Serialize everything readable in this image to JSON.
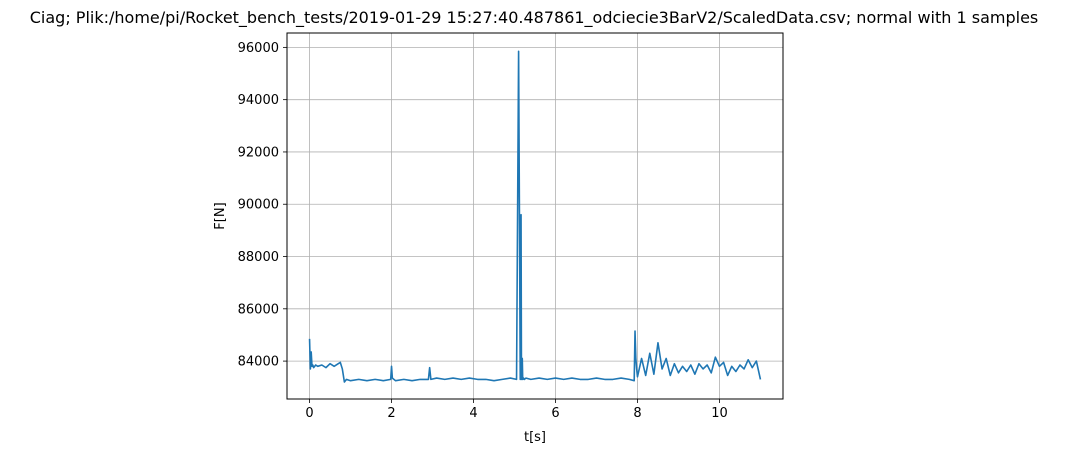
{
  "chart_data": {
    "type": "line",
    "title": "Ciag; Plik:/home/pi/Rocket_bench_tests/2019-01-29 15:27:40.487861_odciecie3BarV2/ScaledData.csv; normal with 1 samples",
    "xlabel": "t[s]",
    "ylabel": "F[N]",
    "xlim": [
      -0.55,
      11.55
    ],
    "ylim": [
      82550,
      96550
    ],
    "xticks": [
      0,
      2,
      4,
      6,
      8,
      10
    ],
    "yticks": [
      84000,
      86000,
      88000,
      90000,
      92000,
      94000,
      96000
    ],
    "grid": true,
    "series": [
      {
        "color": "#1f77b4",
        "x": [
          0.0,
          0.02,
          0.04,
          0.06,
          0.08,
          0.1,
          0.15,
          0.2,
          0.3,
          0.4,
          0.5,
          0.6,
          0.7,
          0.75,
          0.8,
          0.85,
          0.9,
          1.0,
          1.2,
          1.4,
          1.6,
          1.8,
          1.98,
          2.0,
          2.02,
          2.1,
          2.3,
          2.5,
          2.7,
          2.9,
          2.93,
          2.96,
          3.1,
          3.3,
          3.5,
          3.7,
          3.9,
          4.1,
          4.3,
          4.5,
          4.7,
          4.9,
          5.05,
          5.1,
          5.12,
          5.14,
          5.16,
          5.17,
          5.19,
          5.2,
          5.22,
          5.24,
          5.28,
          5.4,
          5.6,
          5.8,
          6.0,
          6.2,
          6.4,
          6.6,
          6.8,
          7.0,
          7.2,
          7.4,
          7.6,
          7.8,
          7.92,
          7.94,
          7.96,
          7.98,
          8.0,
          8.1,
          8.2,
          8.3,
          8.4,
          8.5,
          8.6,
          8.7,
          8.8,
          8.9,
          9.0,
          9.1,
          9.2,
          9.3,
          9.4,
          9.5,
          9.6,
          9.7,
          9.8,
          9.9,
          10.0,
          10.1,
          10.2,
          10.3,
          10.4,
          10.5,
          10.6,
          10.7,
          10.8,
          10.9,
          11.0
        ],
        "y": [
          84850,
          83700,
          84350,
          83800,
          83850,
          83750,
          83850,
          83800,
          83850,
          83750,
          83900,
          83800,
          83900,
          83950,
          83700,
          83200,
          83300,
          83250,
          83300,
          83250,
          83300,
          83250,
          83300,
          83800,
          83350,
          83250,
          83300,
          83250,
          83300,
          83300,
          83750,
          83300,
          83350,
          83300,
          83350,
          83300,
          83350,
          83300,
          83300,
          83250,
          83300,
          83350,
          83300,
          95850,
          89800,
          83300,
          89600,
          83300,
          84100,
          83300,
          83350,
          83300,
          83350,
          83300,
          83350,
          83300,
          83350,
          83300,
          83350,
          83300,
          83300,
          83350,
          83300,
          83300,
          83350,
          83300,
          83250,
          85150,
          84100,
          83700,
          83400,
          84100,
          83450,
          84300,
          83500,
          84700,
          83700,
          84100,
          83450,
          83900,
          83550,
          83800,
          83600,
          83850,
          83500,
          83900,
          83700,
          83850,
          83550,
          84150,
          83800,
          83950,
          83450,
          83800,
          83600,
          83850,
          83700,
          84050,
          83750,
          84000,
          83300
        ]
      }
    ]
  }
}
